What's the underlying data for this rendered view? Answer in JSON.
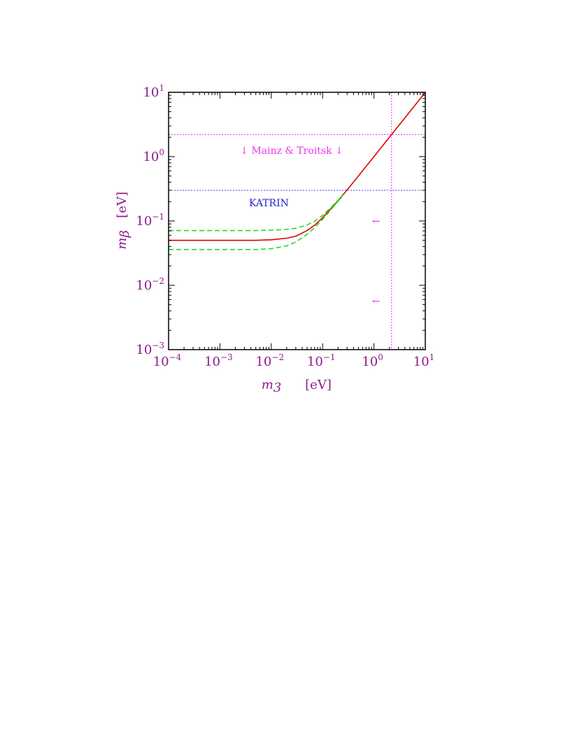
{
  "chart_data": {
    "type": "line",
    "x_scale": "log",
    "y_scale": "log",
    "xlim": [
      0.0001,
      10
    ],
    "ylim": [
      0.001,
      10
    ],
    "x_ticks": [
      0.0001,
      0.001,
      0.01,
      0.1,
      1,
      10
    ],
    "y_ticks": [
      0.001,
      0.01,
      0.1,
      1,
      10
    ],
    "x_tick_labels": [
      {
        "base": "10",
        "exp": "−4"
      },
      {
        "base": "10",
        "exp": "−3"
      },
      {
        "base": "10",
        "exp": "−2"
      },
      {
        "base": "10",
        "exp": "−1"
      },
      {
        "base": "10",
        "exp": "0"
      },
      {
        "base": "10",
        "exp": "1"
      }
    ],
    "y_tick_labels": [
      {
        "base": "10",
        "exp": "−3"
      },
      {
        "base": "10",
        "exp": "−2"
      },
      {
        "base": "10",
        "exp": "−1"
      },
      {
        "base": "10",
        "exp": "0"
      },
      {
        "base": "10",
        "exp": "1"
      }
    ],
    "xlabel": {
      "symbol": "m",
      "sub": "3",
      "unit": "[eV]"
    },
    "ylabel": {
      "symbol": "m",
      "sub": "β",
      "unit": "[eV]"
    },
    "grid": false,
    "series": [
      {
        "style": "solid",
        "color": "#dd0000",
        "x": [
          0.0001,
          0.001,
          0.005,
          0.01,
          0.02,
          0.03,
          0.05,
          0.07,
          0.1,
          0.2,
          0.3,
          0.5,
          1,
          2,
          5,
          10
        ],
        "y": [
          0.05,
          0.05,
          0.05,
          0.051,
          0.054,
          0.058,
          0.071,
          0.086,
          0.112,
          0.206,
          0.304,
          0.502,
          1.0,
          2.0,
          5.0,
          10.0
        ]
      },
      {
        "style": "dashed",
        "color": "#22dd22",
        "x": [
          0.0001,
          0.001,
          0.005,
          0.01,
          0.02,
          0.03,
          0.05,
          0.07,
          0.1,
          0.15,
          0.2,
          0.25
        ],
        "y": [
          0.071,
          0.071,
          0.071,
          0.072,
          0.074,
          0.077,
          0.087,
          0.099,
          0.122,
          0.166,
          0.212,
          0.26
        ]
      },
      {
        "style": "dashed",
        "color": "#22dd22",
        "x": [
          0.0001,
          0.001,
          0.005,
          0.01,
          0.02,
          0.03,
          0.05,
          0.07,
          0.1,
          0.15,
          0.2,
          0.25
        ],
        "y": [
          0.036,
          0.036,
          0.036,
          0.037,
          0.041,
          0.047,
          0.062,
          0.079,
          0.106,
          0.154,
          0.203,
          0.253
        ]
      }
    ],
    "reference_lines": [
      {
        "orientation": "horizontal",
        "value": 2.2,
        "style": "dotted",
        "color": "#ee33ee"
      },
      {
        "orientation": "horizontal",
        "value": 0.3,
        "style": "dotted",
        "color": "#4444ee"
      },
      {
        "orientation": "vertical",
        "value": 2.2,
        "style": "dotted",
        "color": "#ee33ee"
      }
    ],
    "annotations": [
      {
        "text": "↓ Mainz & Troitsk ↓",
        "x": 0.025,
        "y": 1.1,
        "color": "#ee33ee"
      },
      {
        "text": "KATRIN",
        "x": 0.009,
        "y": 0.17,
        "color": "#2222cc"
      },
      {
        "text": "←",
        "x": 1.1,
        "y": 0.088,
        "color": "#ee33ee"
      },
      {
        "text": "←",
        "x": 1.1,
        "y": 0.005,
        "color": "#ee33ee"
      }
    ]
  }
}
